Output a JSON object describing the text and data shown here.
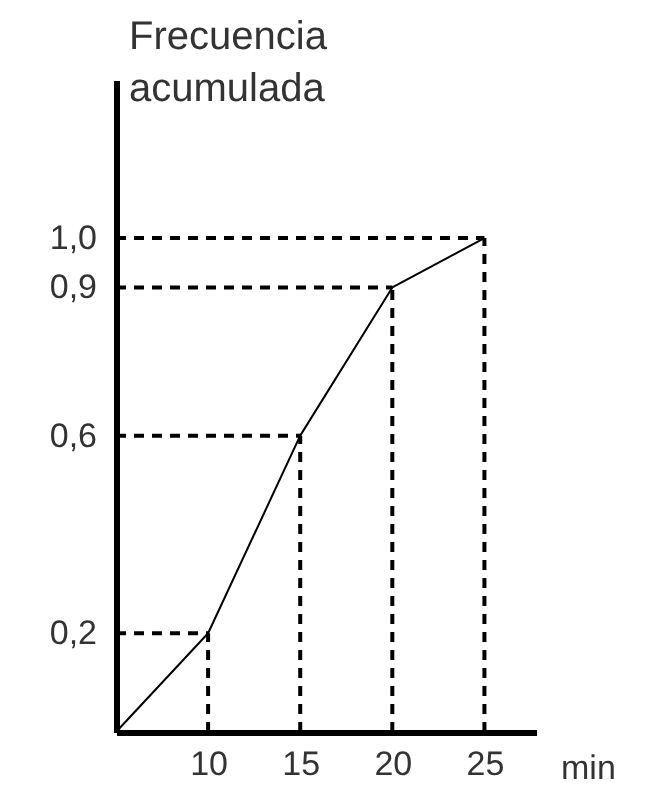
{
  "chart_data": {
    "type": "line",
    "xlabel": "min",
    "ylabel": "Frecuencia acumulada",
    "x": [
      5,
      10,
      15,
      20,
      25
    ],
    "series": [
      {
        "color": "#000000",
        "values": [
          0,
          0.2,
          0.6,
          0.9,
          1.0
        ]
      }
    ],
    "xlim": [
      5,
      27.8
    ],
    "xticks": [
      10,
      15,
      20,
      25
    ],
    "ylim": [
      0,
      1.32
    ],
    "yticks": [
      {
        "value": 0.2,
        "label": "0,2"
      },
      {
        "value": 0.6,
        "label": "0,6"
      },
      {
        "value": 0.9,
        "label": "0,9"
      },
      {
        "value": 1.0,
        "label": "1,0"
      }
    ],
    "ref_lines": [
      {
        "axis": "x",
        "value": 10,
        "color": "#000000",
        "line_style": "dashed"
      },
      {
        "axis": "x",
        "value": 15,
        "color": "#000000",
        "line_style": "dashed"
      },
      {
        "axis": "x",
        "value": 20,
        "color": "#000000",
        "line_style": "dashed"
      },
      {
        "axis": "x",
        "value": 25,
        "color": "#000000",
        "line_style": "dashed"
      },
      {
        "axis": "y",
        "value": 0.2,
        "color": "#000000",
        "line_style": "dashed"
      },
      {
        "axis": "y",
        "value": 0.6,
        "color": "#000000",
        "line_style": "dashed"
      },
      {
        "axis": "y",
        "value": 0.9,
        "color": "#000000",
        "line_style": "dashed"
      },
      {
        "axis": "y",
        "value": 1.0,
        "color": "#000000",
        "line_style": "dashed"
      }
    ],
    "grid": false,
    "legend": false,
    "marker": "none",
    "line_style": "solid"
  }
}
